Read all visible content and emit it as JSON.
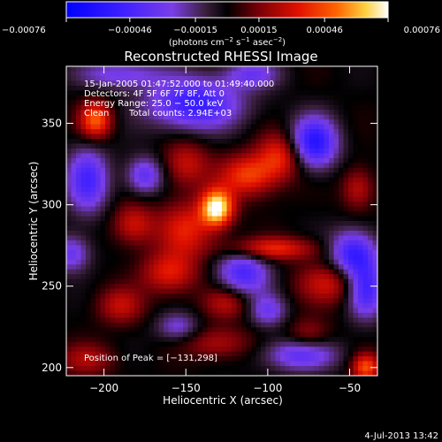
{
  "chart_data": {
    "type": "heatmap",
    "title": "Reconstructed RHESSI Image",
    "xlabel": "Heliocentric X (arcsec)",
    "ylabel": "Heliocentric Y (arcsec)",
    "xlim": [
      -223,
      -33
    ],
    "ylim": [
      195,
      385
    ],
    "xticks": [
      -200,
      -150,
      -100,
      -50
    ],
    "xtick_labels": [
      "−200",
      "−150",
      "−100",
      "−50"
    ],
    "yticks": [
      200,
      250,
      300,
      350
    ],
    "ytick_labels": [
      "200",
      "250",
      "300",
      "350"
    ],
    "colorbar": {
      "range": [
        -0.00076,
        0.00076
      ],
      "ticks": [
        -0.00076,
        -0.00046,
        -0.00015,
        0.00015,
        0.00046,
        0.00076
      ],
      "tick_labels": [
        "−0.00076",
        "−0.00046",
        "−0.00015",
        "0.00015",
        "0.00046",
        "0.00076"
      ],
      "unit_prefix": "(photons cm",
      "unit_sup1": "−2",
      "unit_mid": " s",
      "unit_sup2": "−1",
      "unit_tail": " asec",
      "unit_sup3": "−2",
      "unit_close": ")"
    },
    "annotations": {
      "time_range": "15-Jan-2005 01:47:52.000 to 01:49:40.000",
      "detectors": "Detectors: 4F 5F 6F 7F 8F, Att 0",
      "energy": "Energy Range: 25.0 − 50.0 keV",
      "clean_label": "Clean",
      "counts": "Total counts: 2.94E+03",
      "peak": "Position of Peak = [−131,298]"
    },
    "sources": [
      {
        "x": -131,
        "y": 298,
        "sx": 7,
        "sy": 8,
        "amp": 1.0
      },
      {
        "x": -112,
        "y": 318,
        "sx": 12,
        "sy": 9,
        "amp": 0.55
      },
      {
        "x": -150,
        "y": 285,
        "sx": 12,
        "sy": 12,
        "amp": 0.45
      },
      {
        "x": -92,
        "y": 330,
        "sx": 10,
        "sy": 10,
        "amp": 0.5
      },
      {
        "x": -205,
        "y": 352,
        "sx": 7,
        "sy": 8,
        "amp": 0.65
      },
      {
        "x": -98,
        "y": 273,
        "sx": 20,
        "sy": 5,
        "amp": 0.5
      },
      {
        "x": -160,
        "y": 258,
        "sx": 12,
        "sy": 9,
        "amp": 0.45
      },
      {
        "x": -182,
        "y": 288,
        "sx": 9,
        "sy": 9,
        "amp": 0.4
      },
      {
        "x": -190,
        "y": 238,
        "sx": 10,
        "sy": 8,
        "amp": 0.35
      },
      {
        "x": -62,
        "y": 252,
        "sx": 14,
        "sy": 9,
        "amp": 0.4
      },
      {
        "x": -150,
        "y": 325,
        "sx": 10,
        "sy": 10,
        "amp": 0.38
      },
      {
        "x": -45,
        "y": 310,
        "sx": 7,
        "sy": 9,
        "amp": 0.35
      },
      {
        "x": -130,
        "y": 215,
        "sx": 14,
        "sy": 7,
        "amp": 0.32
      },
      {
        "x": -125,
        "y": 240,
        "sx": 10,
        "sy": 7,
        "amp": 0.35
      },
      {
        "x": -210,
        "y": 205,
        "sx": 12,
        "sy": 7,
        "amp": 0.3
      },
      {
        "x": -40,
        "y": 200,
        "sx": 6,
        "sy": 6,
        "amp": 0.6
      },
      {
        "x": -75,
        "y": 220,
        "sx": 9,
        "sy": 7,
        "amp": 0.28
      }
    ],
    "sinks": [
      {
        "x": -72,
        "y": 338,
        "sx": 10,
        "sy": 11,
        "amp": 0.8
      },
      {
        "x": -145,
        "y": 362,
        "sx": 20,
        "sy": 11,
        "amp": 0.7
      },
      {
        "x": -210,
        "y": 315,
        "sx": 9,
        "sy": 14,
        "amp": 0.6
      },
      {
        "x": -115,
        "y": 258,
        "sx": 11,
        "sy": 10,
        "amp": 0.6
      },
      {
        "x": -175,
        "y": 318,
        "sx": 8,
        "sy": 8,
        "amp": 0.5
      },
      {
        "x": -48,
        "y": 270,
        "sx": 10,
        "sy": 10,
        "amp": 0.7
      },
      {
        "x": -40,
        "y": 248,
        "sx": 8,
        "sy": 12,
        "amp": 0.65
      },
      {
        "x": -80,
        "y": 208,
        "sx": 16,
        "sy": 7,
        "amp": 0.5
      },
      {
        "x": -220,
        "y": 270,
        "sx": 8,
        "sy": 8,
        "amp": 0.45
      },
      {
        "x": -190,
        "y": 380,
        "sx": 18,
        "sy": 6,
        "amp": 0.4
      },
      {
        "x": -110,
        "y": 380,
        "sx": 12,
        "sy": 6,
        "amp": 0.4
      },
      {
        "x": -155,
        "y": 225,
        "sx": 9,
        "sy": 6,
        "amp": 0.35
      },
      {
        "x": -100,
        "y": 235,
        "sx": 8,
        "sy": 7,
        "amp": 0.4
      }
    ]
  },
  "footer": {
    "date": "4-Jul-2013 13:42"
  }
}
